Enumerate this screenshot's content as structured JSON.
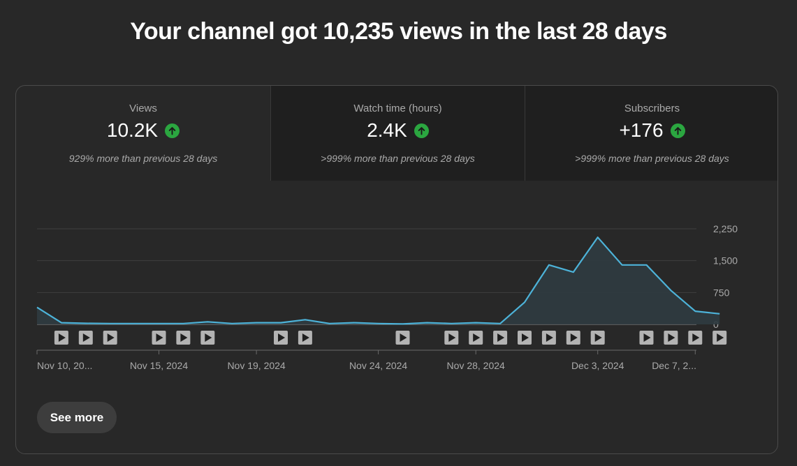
{
  "headline": "Your channel got 10,235 views in the last 28 days",
  "tabs": [
    {
      "label": "Views",
      "value": "10.2K",
      "sub": "929% more than previous 28 days",
      "icon": "arrow-up-icon"
    },
    {
      "label": "Watch time (hours)",
      "value": "2.4K",
      "sub": ">999% more than previous 28 days",
      "icon": "arrow-up-icon"
    },
    {
      "label": "Subscribers",
      "value": "+176",
      "sub": ">999% more than previous 28 days",
      "icon": "arrow-up-icon"
    }
  ],
  "colors": {
    "line": "#4db3d9",
    "area": "#2f3b40",
    "up": "#2ba640",
    "grid": "#3f3f3f",
    "marker": "#b3b3b3"
  },
  "chart_data": {
    "type": "area",
    "series": [
      {
        "name": "",
        "values": [
          400,
          40,
          25,
          20,
          20,
          20,
          20,
          60,
          20,
          40,
          40,
          110,
          20,
          40,
          20,
          10,
          40,
          20,
          40,
          20,
          520,
          1400,
          1230,
          2050,
          1400,
          1400,
          800,
          310,
          250
        ]
      }
    ],
    "ylim": [
      0,
      2250
    ],
    "yticks": [
      "2,250",
      "1,500",
      "750",
      "0"
    ],
    "ytick_values": [
      2250,
      1500,
      750,
      0
    ],
    "xlabels": [
      "Nov 10, 20...",
      "Nov 15, 2024",
      "Nov 19, 2024",
      "Nov 24, 2024",
      "Nov 28, 2024",
      "Dec 3, 2024",
      "Dec 7, 2..."
    ],
    "xlabel_days": [
      0,
      5,
      9,
      14,
      18,
      23,
      27
    ],
    "video_marker_days": [
      1,
      2,
      3,
      5,
      6,
      7,
      10,
      11,
      15,
      17,
      18,
      19,
      20,
      21,
      22,
      23,
      25,
      26,
      27,
      28
    ],
    "grid": true
  },
  "see_more": "See more"
}
